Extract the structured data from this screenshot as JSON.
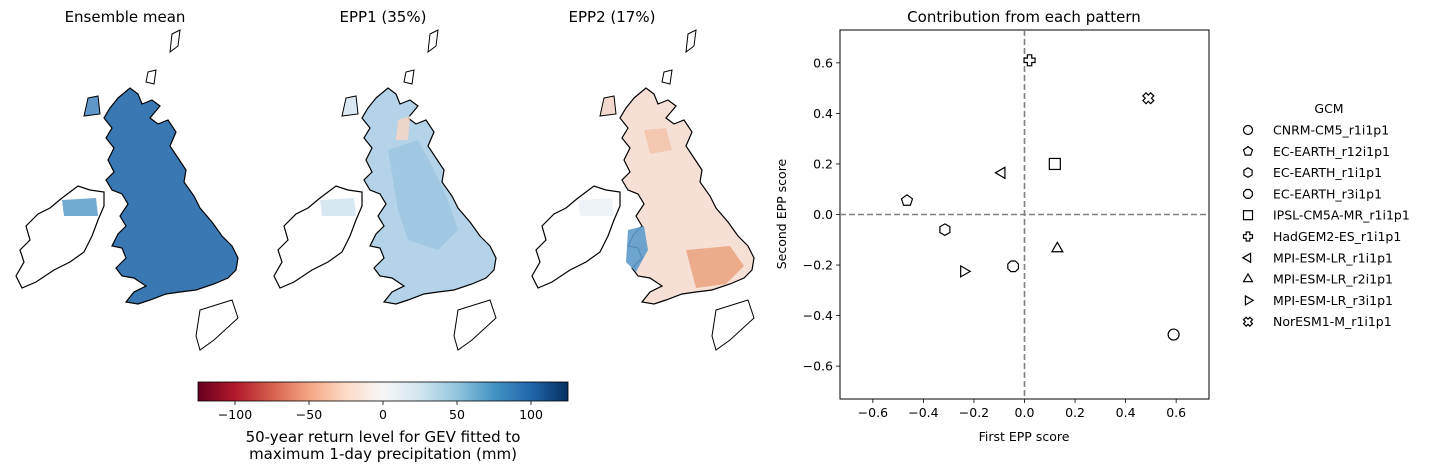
{
  "maps": {
    "panels": [
      {
        "title": "Ensemble mean",
        "style": "mean"
      },
      {
        "title": "EPP1 (35%)",
        "style": "epp1"
      },
      {
        "title": "EPP2 (17%)",
        "style": "epp2"
      }
    ]
  },
  "colorbar": {
    "label_line1": "50-year return level for GEV fitted to",
    "label_line2": "maximum 1-day precipitation (mm)",
    "ticks": [
      -100,
      -50,
      0,
      50,
      100
    ],
    "tick_labels": [
      "−100",
      "−50",
      "0",
      "50",
      "100"
    ],
    "range": [
      -125,
      125
    ],
    "colormap": "RdBu",
    "colors": [
      "#67001f",
      "#b2182b",
      "#d6604d",
      "#f4a582",
      "#fddbc7",
      "#f7f7f7",
      "#d1e5f0",
      "#92c5de",
      "#4393c3",
      "#2166ac",
      "#053061"
    ]
  },
  "chart_data": {
    "type": "scatter",
    "title": "Contribution from each pattern",
    "xlabel": "First EPP score",
    "ylabel": "Second EPP score",
    "xlim": [
      -0.73,
      0.73
    ],
    "ylim": [
      -0.73,
      0.73
    ],
    "xticks": [
      -0.6,
      -0.4,
      -0.2,
      0.0,
      0.2,
      0.4,
      0.6
    ],
    "yticks": [
      -0.6,
      -0.4,
      -0.2,
      0.0,
      0.2,
      0.4,
      0.6
    ],
    "tick_labels": [
      "−0.6",
      "−0.4",
      "−0.2",
      "0.0",
      "0.2",
      "0.4",
      "0.6"
    ],
    "reference_lines": {
      "x": 0,
      "y": 0,
      "style": "dashed",
      "color": "#808080"
    },
    "legend_title": "GCM",
    "legend_position": "outside-right",
    "series": [
      {
        "name": "CNRM-CM5_r1i1p1",
        "marker": "circle",
        "x": 0.59,
        "y": -0.475
      },
      {
        "name": "EC-EARTH_r12i1p1",
        "marker": "pentagon",
        "x": -0.465,
        "y": 0.055
      },
      {
        "name": "EC-EARTH_r1i1p1",
        "marker": "hexagon",
        "x": -0.315,
        "y": -0.06
      },
      {
        "name": "EC-EARTH_r3i1p1",
        "marker": "octagon",
        "x": -0.045,
        "y": -0.205
      },
      {
        "name": "IPSL-CM5A-MR_r1i1p1",
        "marker": "square",
        "x": 0.12,
        "y": 0.2
      },
      {
        "name": "HadGEM2-ES_r1i1p1",
        "marker": "plus",
        "x": 0.02,
        "y": 0.61
      },
      {
        "name": "MPI-ESM-LR_r1i1p1",
        "marker": "triangle-left",
        "x": -0.09,
        "y": 0.165
      },
      {
        "name": "MPI-ESM-LR_r2i1p1",
        "marker": "triangle-up",
        "x": 0.13,
        "y": -0.135
      },
      {
        "name": "MPI-ESM-LR_r3i1p1",
        "marker": "triangle-right",
        "x": -0.24,
        "y": -0.225
      },
      {
        "name": "NorESM1-M_r1i1p1",
        "marker": "x-filled",
        "x": 0.49,
        "y": 0.46
      }
    ]
  }
}
